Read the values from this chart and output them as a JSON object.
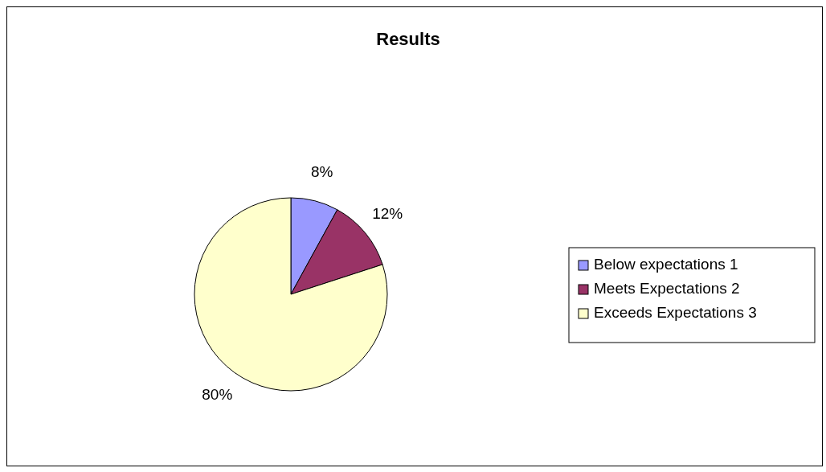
{
  "chart_data": {
    "type": "pie",
    "title": "Results",
    "categories": [
      "Below expectations 1",
      "Meets Expectations 2",
      "Exceeds Expectations 3"
    ],
    "values": [
      8,
      12,
      80
    ],
    "colors": [
      "#9999ff",
      "#993366",
      "#ffffcc"
    ],
    "value_labels": [
      "8%",
      "12%",
      "80%"
    ],
    "legend": "right"
  }
}
